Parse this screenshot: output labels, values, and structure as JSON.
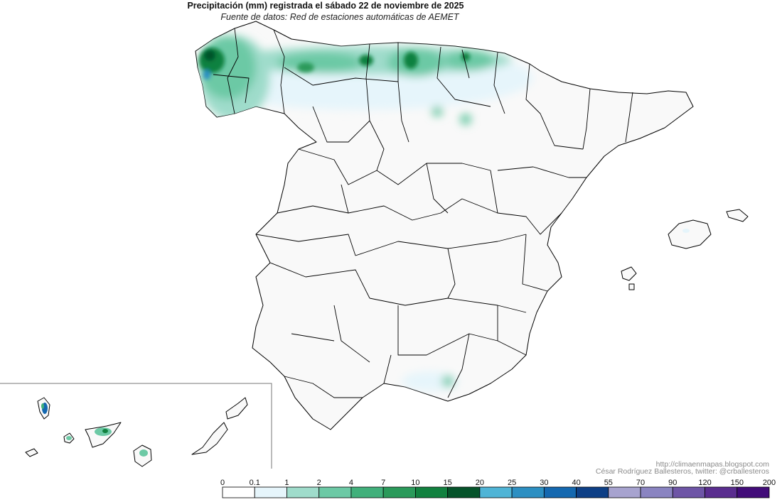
{
  "title": "Precipitación (mm) registrada el sábado 22 de noviembre de 2025",
  "subtitle": "Fuente de datos: Red de estaciones automáticas de AEMET",
  "credits": {
    "url": "http://climaenmapas.blogspot.com",
    "author": "César Rodríguez Ballesteros, twitter: @crballesteros"
  },
  "legend": {
    "breaks": [
      "0",
      "0.1",
      "1",
      "2",
      "4",
      "7",
      "10",
      "15",
      "20",
      "25",
      "30",
      "40",
      "55",
      "70",
      "90",
      "120",
      "150",
      "200"
    ],
    "colors": [
      "#ffffff",
      "#e6f5fb",
      "#9fdccb",
      "#6cc9a5",
      "#41b07b",
      "#2a9a5a",
      "#11813f",
      "#05532a",
      "#4fb4d6",
      "#2c8fc2",
      "#1468b0",
      "#0d3f86",
      "#a7a3cf",
      "#8a84c1",
      "#6e55a6",
      "#5a2d8f",
      "#420c79"
    ]
  },
  "precip_colors": {
    "trace": "#e6f5fb",
    "light": "#9fdccb",
    "moderate": "#6cc9a5",
    "heavy": "#41b07b",
    "very_heavy": "#11813f",
    "extreme": "#05532a",
    "blue": "#2c8fc2"
  }
}
